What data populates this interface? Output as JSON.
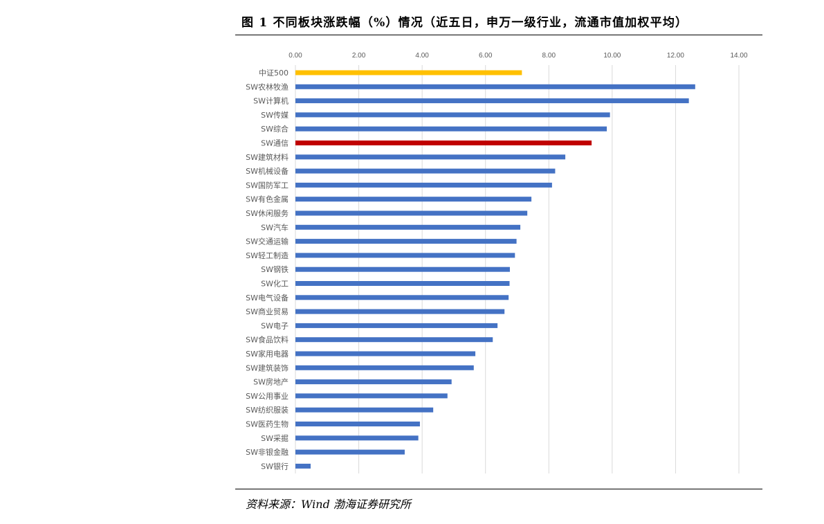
{
  "figure": {
    "title": "图 1 不同板块涨跌幅（%）情况（近五日，申万一级行业，流通市值加权平均）",
    "source": "资料来源：Wind 渤海证券研究所"
  },
  "colors": {
    "default_bar": "#4472C4",
    "highlight_index": "#FFC000",
    "highlight_sector": "#C00000",
    "grid": "#D9D9D9",
    "tick_text": "#595959"
  },
  "chart_data": {
    "type": "bar",
    "orientation": "horizontal",
    "title": "不同板块涨跌幅（%）情况（近五日，申万一级行业，流通市值加权平均）",
    "xlabel": "",
    "ylabel": "",
    "xlim": [
      0,
      14
    ],
    "xticks": [
      "0.00",
      "2.00",
      "4.00",
      "6.00",
      "8.00",
      "10.00",
      "12.00",
      "14.00"
    ],
    "x_axis_position": "top",
    "grid": true,
    "legend": "none",
    "categories": [
      "中证500",
      "SW农林牧渔",
      "SW计算机",
      "SW传媒",
      "SW综合",
      "SW通信",
      "SW建筑材料",
      "SW机械设备",
      "SW国防军工",
      "SW有色金属",
      "SW休闲服务",
      "SW汽车",
      "SW交通运输",
      "SW轻工制造",
      "SW钢铁",
      "SW化工",
      "SW电气设备",
      "SW商业贸易",
      "SW电子",
      "SW食品饮料",
      "SW家用电器",
      "SW建筑装饰",
      "SW房地产",
      "SW公用事业",
      "SW纺织服装",
      "SW医药生物",
      "SW采掘",
      "SW非银金融",
      "SW银行"
    ],
    "values": [
      7.15,
      12.62,
      12.42,
      9.93,
      9.83,
      9.35,
      8.52,
      8.2,
      8.1,
      7.45,
      7.32,
      7.1,
      6.98,
      6.93,
      6.77,
      6.76,
      6.73,
      6.6,
      6.38,
      6.23,
      5.68,
      5.63,
      4.93,
      4.8,
      4.35,
      3.93,
      3.88,
      3.45,
      0.48
    ],
    "highlight": {
      "中证500": "index",
      "SW通信": "sector"
    }
  }
}
